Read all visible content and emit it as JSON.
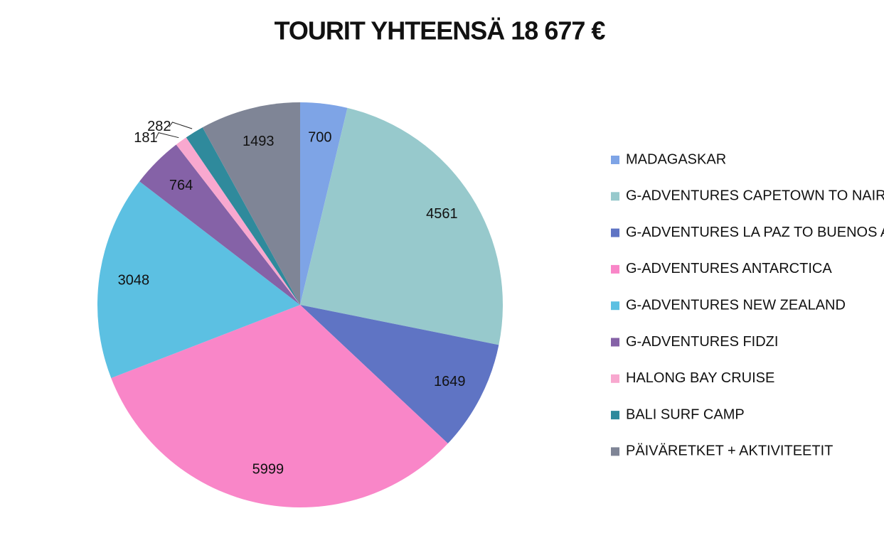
{
  "chart_data": {
    "type": "pie",
    "title": "TOURIT YHTEENSÄ 18 677 €",
    "categories": [
      "MADAGASKAR",
      "G-ADVENTURES CAPETOWN TO NAIROBI",
      "G-ADVENTURES LA PAZ TO BUENOS AIRES",
      "G-ADVENTURES ANTARCTICA",
      "G-ADVENTURES NEW ZEALAND",
      "G-ADVENTURES FIDZI",
      "HALONG BAY CRUISE",
      "BALI SURF CAMP",
      "PÄIVÄRETKET + AKTIVITEETIT"
    ],
    "values": [
      700,
      4561,
      1649,
      5999,
      3048,
      764,
      181,
      282,
      1493
    ],
    "colors": [
      "#7ea4e6",
      "#97c9cc",
      "#5f74c4",
      "#f986c8",
      "#5cc0e2",
      "#8562a7",
      "#f8a8cf",
      "#2f8a9c",
      "#7f8596"
    ],
    "legend": "right"
  }
}
